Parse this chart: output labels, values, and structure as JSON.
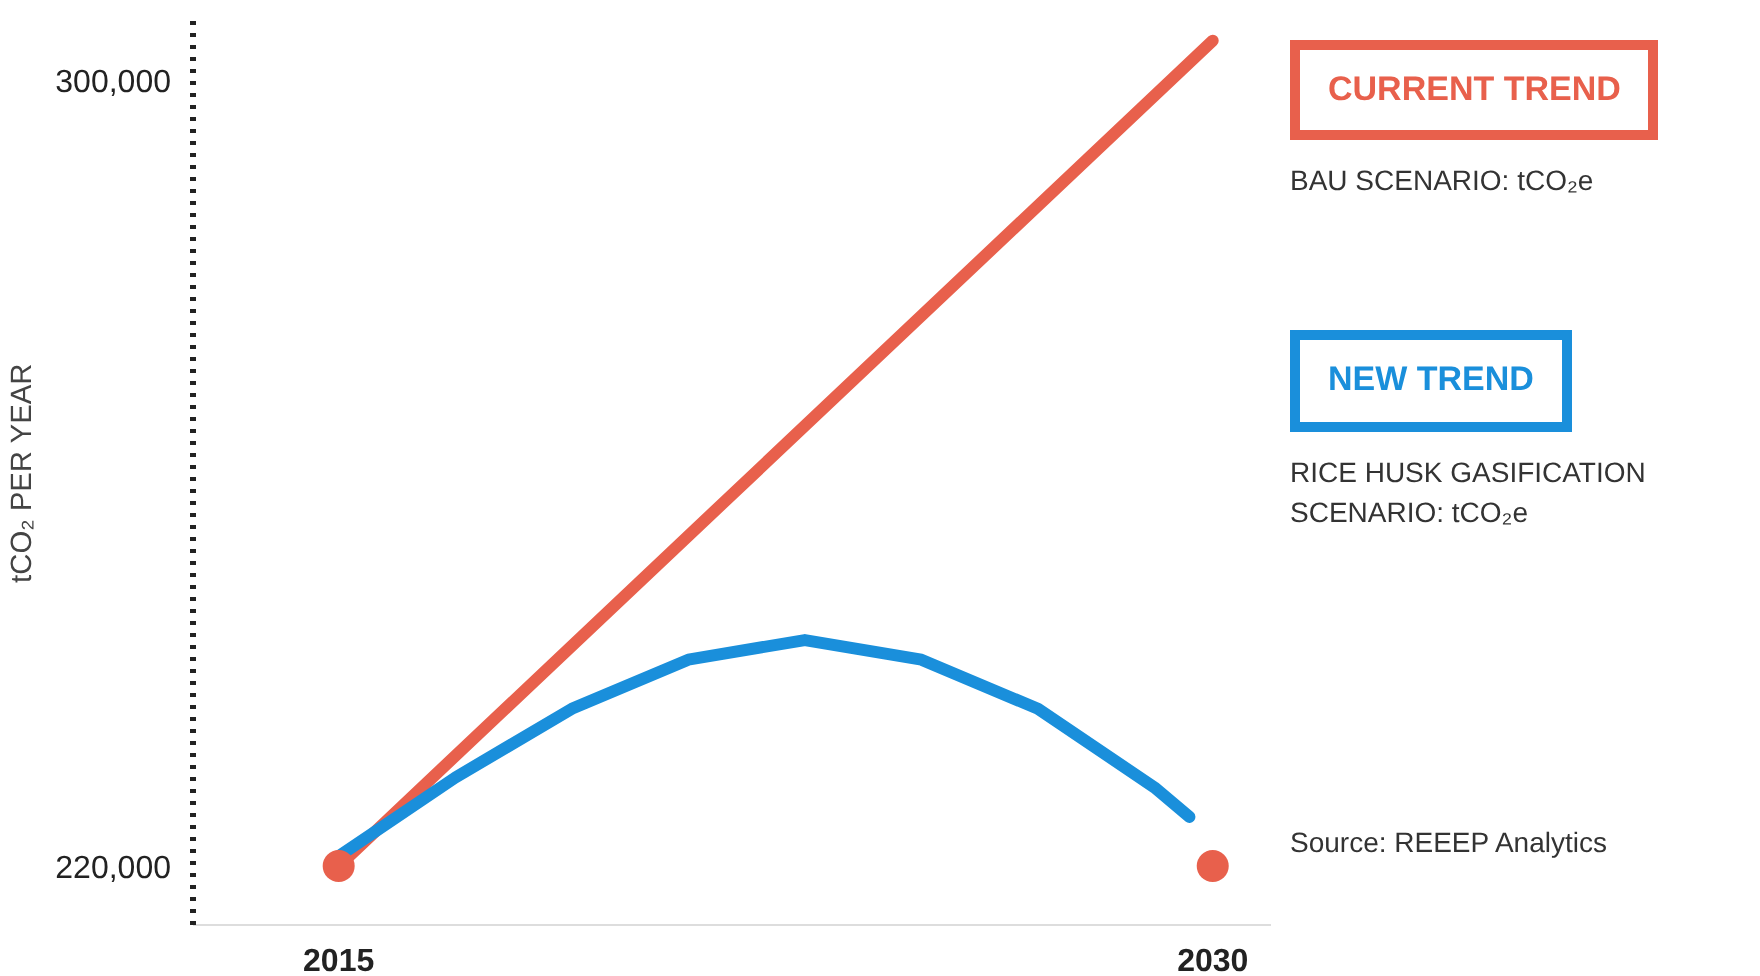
{
  "chart_data": {
    "type": "line",
    "ylabel": "tCO₂ PER YEAR",
    "xlim": [
      2012.5,
      2031
    ],
    "xticks": [
      2015,
      2030
    ],
    "ylim": [
      214000,
      306000
    ],
    "yticks": [
      {
        "value": 220000,
        "label": "220,000"
      },
      {
        "value": 300000,
        "label": "300,000"
      }
    ],
    "series": [
      {
        "name": "CURRENT TREND",
        "color": "#e8604c",
        "x": [
          2015,
          2030
        ],
        "values": [
          220000,
          304000
        ]
      },
      {
        "name": "NEW TREND",
        "color": "#1a8fdb",
        "x": [
          2015,
          2017,
          2019,
          2021,
          2023,
          2025,
          2027,
          2029,
          2029.6
        ],
        "values": [
          221000,
          229000,
          236000,
          241000,
          243000,
          241000,
          236000,
          228000,
          225000
        ]
      },
      {
        "type": "scatter",
        "color": "#e8604c",
        "x": [
          2015,
          2030
        ],
        "values": [
          220000,
          220000
        ]
      }
    ],
    "annotations": [
      "BAU SCENARIO: tCO₂e",
      "RICE HUSK GASIFICATION SCENARIO: tCO₂e",
      "Source: REEEP Analytics"
    ],
    "legend": "right",
    "grid": false,
    "line_style": "solid"
  }
}
